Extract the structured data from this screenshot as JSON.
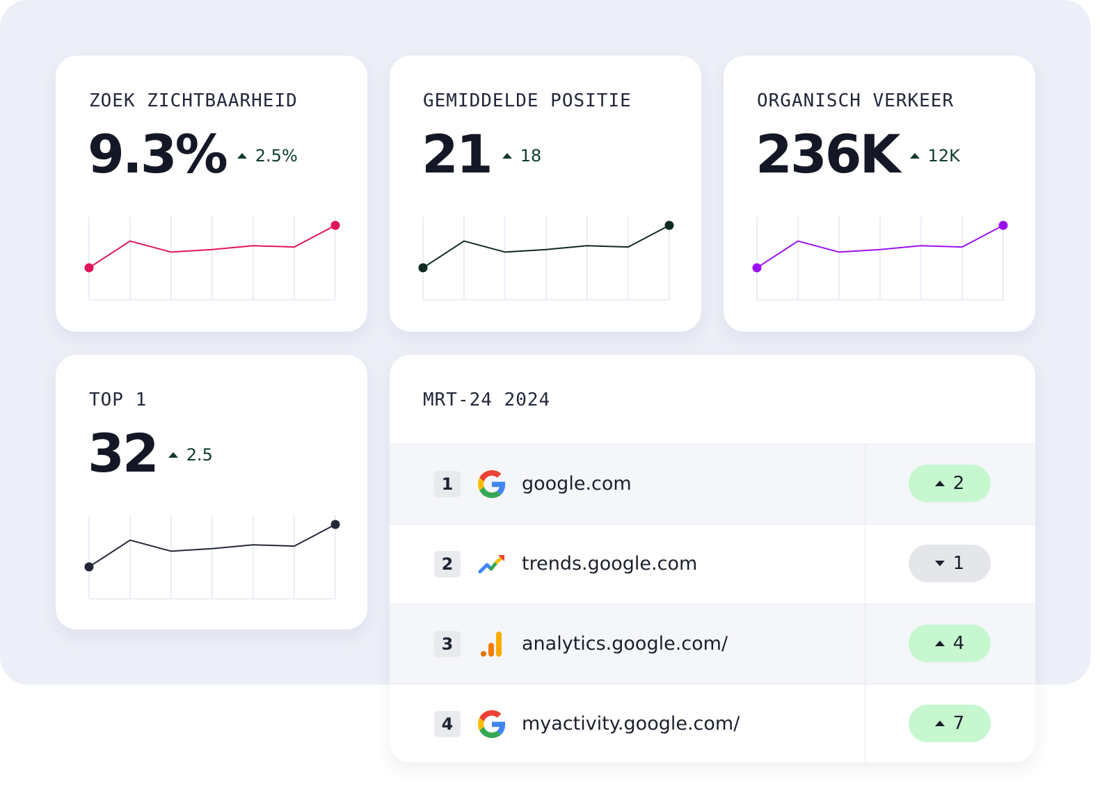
{
  "cards": [
    {
      "label": "ZOEK ZICHTBAARHEID",
      "value": "9.3%",
      "delta": "2.5%",
      "delta_direction": "up",
      "line_color": "#e0145a",
      "trend": [
        0.0,
        0.63,
        0.37,
        0.43,
        0.52,
        0.49,
        1.0
      ]
    },
    {
      "label": "GEMIDDELDE POSITIE",
      "value": "21",
      "delta": "18",
      "delta_direction": "up",
      "line_color": "#0f2a1e",
      "trend": [
        0.0,
        0.63,
        0.37,
        0.43,
        0.52,
        0.49,
        1.0
      ]
    },
    {
      "label": "ORGANISCH VERKEER",
      "value": "236K",
      "delta": "12K",
      "delta_direction": "up",
      "line_color": "#9b10f0",
      "trend": [
        0.0,
        0.63,
        0.37,
        0.43,
        0.52,
        0.49,
        1.0
      ]
    },
    {
      "label": "TOP 1",
      "value": "32",
      "delta": "2.5",
      "delta_direction": "up",
      "line_color": "#232838",
      "trend": [
        0.0,
        0.63,
        0.37,
        0.43,
        0.52,
        0.49,
        1.0
      ]
    }
  ],
  "ranking": {
    "title": "MRT-24 2024",
    "rows": [
      {
        "rank": "1",
        "icon": "google-icon",
        "domain": "google.com",
        "change": "2",
        "direction": "up"
      },
      {
        "rank": "2",
        "icon": "google-trends-icon",
        "domain": "trends.google.com",
        "change": "1",
        "direction": "down"
      },
      {
        "rank": "3",
        "icon": "google-analytics-icon",
        "domain": "analytics.google.com/",
        "change": "4",
        "direction": "up"
      },
      {
        "rank": "4",
        "icon": "google-icon",
        "domain": "myactivity.google.com/",
        "change": "7",
        "direction": "up"
      }
    ]
  },
  "colors": {
    "up_badge": "#c6f7cf",
    "down_badge": "#e4e6ea",
    "backdrop": "#eceff7"
  }
}
